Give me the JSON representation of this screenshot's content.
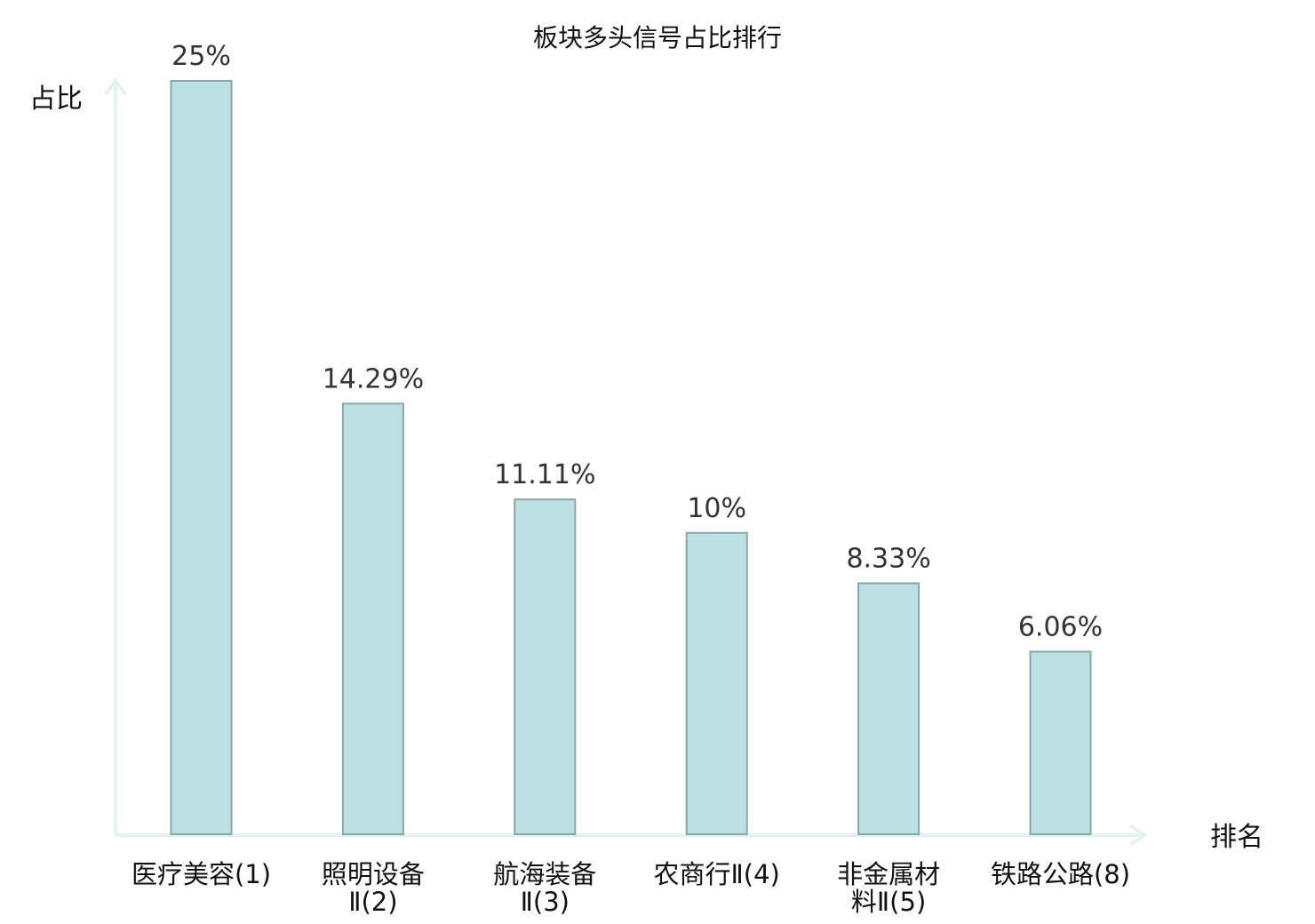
{
  "chart_data": {
    "type": "bar",
    "title": "板块多头信号占比排行",
    "ylabel": "占比",
    "xlabel": "排名",
    "ylim": [
      0,
      25
    ],
    "categories": [
      [
        "医疗美容(1)"
      ],
      [
        "照明设备",
        "Ⅱ(2)"
      ],
      [
        "航海装备",
        "Ⅱ(3)"
      ],
      [
        "农商行Ⅱ(4)"
      ],
      [
        "非金属材",
        "料Ⅱ(5)"
      ],
      [
        "铁路公路(8)"
      ]
    ],
    "values": [
      25,
      14.29,
      11.11,
      10,
      8.33,
      6.06
    ],
    "value_labels": [
      "25%",
      "14.29%",
      "11.11%",
      "10%",
      "8.33%",
      "6.06%"
    ],
    "highlight_index": 5,
    "colors": {
      "bar_fill": "#bde0e2",
      "bar_stroke": "#86a8ab",
      "axis": "#e3f3f1",
      "highlight_text": "#e60000",
      "text": "#111111",
      "label_text": "#333333"
    }
  }
}
